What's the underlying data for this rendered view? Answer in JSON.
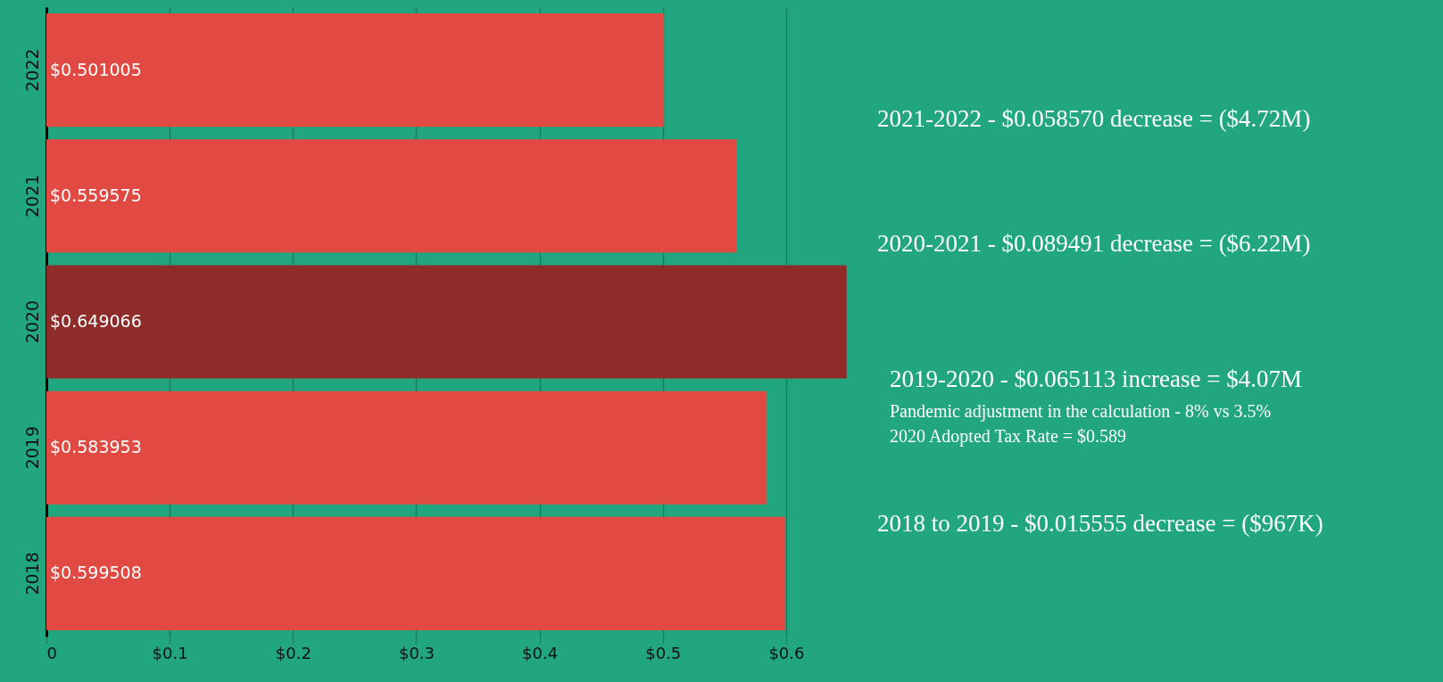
{
  "chart_data": {
    "type": "bar",
    "orientation": "horizontal",
    "categories": [
      "2022",
      "2021",
      "2020",
      "2019",
      "2018"
    ],
    "values": [
      0.501005,
      0.559575,
      0.649066,
      0.583953,
      0.599508
    ],
    "colors": [
      "#e04a43",
      "#e04a43",
      "#8e2c29",
      "#e04a43",
      "#e04a43"
    ],
    "value_labels": [
      "$0.501005",
      "$0.559575",
      "$0.649066",
      "$0.583953",
      "$0.599508"
    ],
    "xlim": [
      0,
      0.65
    ],
    "xticks": [
      0,
      {
        "value": 0.1,
        "label": "$0.1"
      },
      {
        "value": 0.2,
        "label": "$0.2"
      },
      {
        "value": 0.3,
        "label": "$0.3"
      },
      {
        "value": 0.4,
        "label": "$0.4"
      },
      {
        "value": 0.5,
        "label": "$0.5"
      },
      {
        "value": 0.6,
        "label": "$0.6"
      }
    ],
    "grid": "x",
    "annotations": [
      "2021-2022 - $0.058570 decrease = ($4.72M)",
      "2020-2021 - $0.089491 decrease = ($6.22M)",
      "2019-2020 - $0.065113 increase = $4.07M",
      "Pandemic adjustment in the calculation - 8% vs 3.5%",
      "2020 Adopted Tax Rate = $0.589",
      "2018 to 2019 - $0.015555 decrease = ($967K)"
    ]
  }
}
